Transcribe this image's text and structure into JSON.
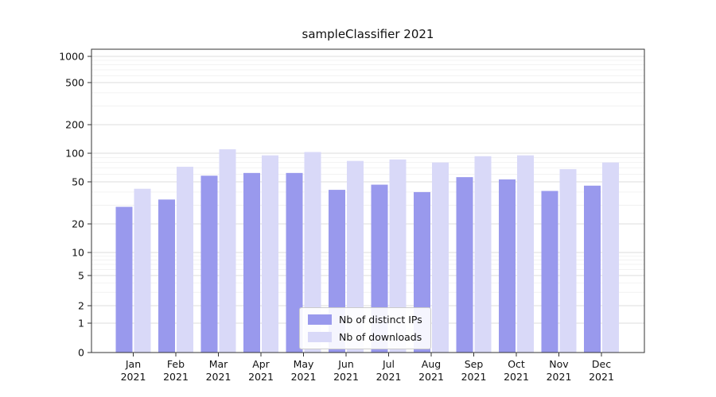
{
  "chart_data": {
    "type": "bar",
    "title": "sampleClassifier 2021",
    "categories": [
      "Jan",
      "Feb",
      "Mar",
      "Apr",
      "May",
      "Jun",
      "Jul",
      "Aug",
      "Sep",
      "Oct",
      "Nov",
      "Dec"
    ],
    "category_year": "2021",
    "series": [
      {
        "name": "Nb of distinct IPs",
        "color": "#9999ed",
        "values": [
          29,
          34,
          58,
          62,
          62,
          42,
          47,
          40,
          56,
          53,
          41,
          46
        ]
      },
      {
        "name": "Nb of downloads",
        "color": "#d9d9f8",
        "values": [
          43,
          72,
          110,
          95,
          103,
          83,
          86,
          80,
          93,
          95,
          68,
          80
        ]
      }
    ],
    "yscale": "symlog",
    "yticks": [
      0,
      1,
      2,
      5,
      10,
      20,
      50,
      100,
      200,
      500,
      1000
    ],
    "yminorticks": [
      3,
      4,
      6,
      7,
      8,
      9,
      30,
      40,
      60,
      70,
      80,
      90,
      300,
      400,
      600,
      700,
      800,
      900
    ],
    "ylim": [
      0,
      1200
    ],
    "grid": true,
    "legend_position": "lower center",
    "colors": {
      "major_grid": "#dcdcdc",
      "minor_grid": "#efefef",
      "axis": "#333333",
      "text": "#111111"
    }
  }
}
